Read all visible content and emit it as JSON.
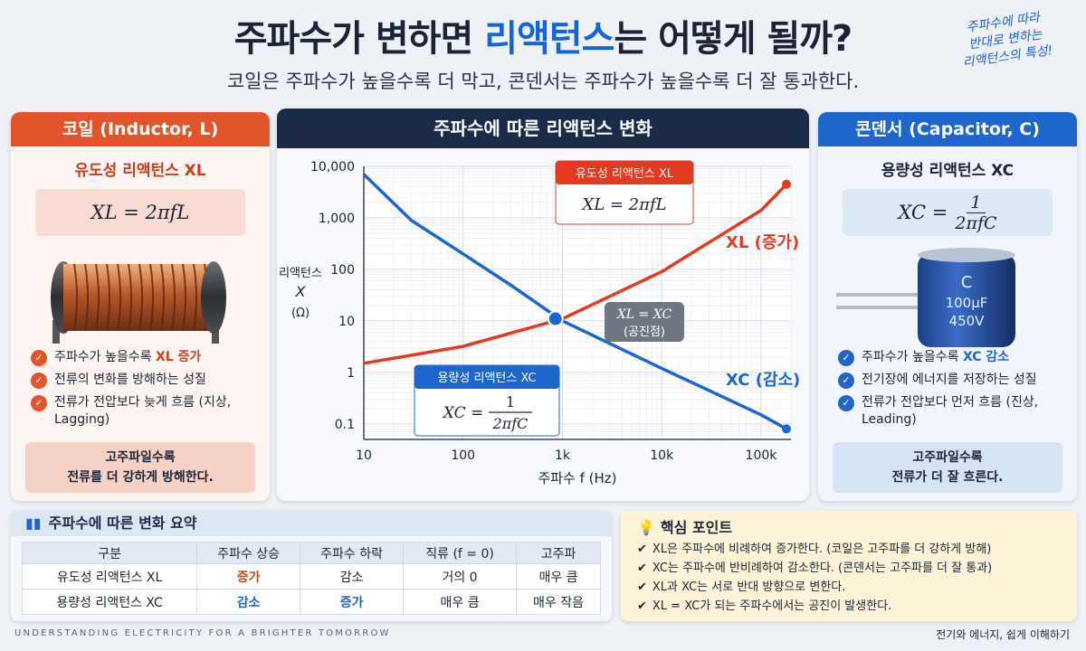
{
  "header": {
    "title_pre": "주파수가 변하면 ",
    "title_hl": "리액턴스",
    "title_post": "는 어떻게 될까?",
    "subtitle": "코일은 주파수가 높을수록 더 막고, 콘덴서는 주파수가 높을수록 더 잘 통과한다.",
    "note_lines": [
      "주파수에 따라",
      "반대로 변하는",
      "리액턴스의 특성!"
    ]
  },
  "inductor": {
    "head": "코일 (Inductor, L)",
    "sub": "유도성 리액턴스 XL",
    "formula": "XL = 2πfL",
    "bullets": [
      {
        "text": "주파수가 높을수록 ",
        "em": "XL 증가"
      },
      {
        "text": "전류의 변화를 방해하는 성질",
        "em": ""
      },
      {
        "text": "전류가 전압보다 늦게 흐름 (지상, Lagging)",
        "em": ""
      }
    ],
    "bottom_line1": "고주파일수록",
    "bottom_line2": "전류를 더 강하게 방해한다."
  },
  "capacitor": {
    "head": "콘덴서 (Capacitor, C)",
    "sub": "용량성 리액턴스 XC",
    "formula_lhs": "XC =",
    "formula_num": "1",
    "formula_den": "2πfC",
    "body_label": "C",
    "body_value": "100μF",
    "body_voltage": "450V",
    "bullets": [
      {
        "text": "주파수가 높을수록 ",
        "em": "XC 감소"
      },
      {
        "text": "전기장에 에너지를 저장하는 성질",
        "em": ""
      },
      {
        "text": "전류가 전압보다 먼저 흐름 (진상, Leading)",
        "em": ""
      }
    ],
    "bottom_line1": "고주파일수록",
    "bottom_line2": "전류가 더 잘 흐른다."
  },
  "chart_data": {
    "type": "line",
    "title": "주파수에 따른 리액턴스 변화",
    "xlabel": "주파수 f (Hz)",
    "ylabel": [
      "리액턴스",
      "X",
      "(Ω)"
    ],
    "x_scale": "log",
    "y_scale": "log",
    "xlim": [
      10,
      200000
    ],
    "ylim": [
      0.05,
      10000
    ],
    "x_ticks": [
      10,
      100,
      1000,
      10000,
      100000
    ],
    "x_tick_labels": [
      "10",
      "100",
      "1k",
      "10k",
      "100k"
    ],
    "y_ticks": [
      0.1,
      1,
      10,
      100,
      1000,
      10000
    ],
    "y_tick_labels": [
      "0.1",
      "1",
      "10",
      "100",
      "1,000",
      "10,000"
    ],
    "grid": true,
    "series": [
      {
        "name": "유도성 리액턴스 XL",
        "color": "#e33b22",
        "x": [
          10,
          100,
          1000,
          10000,
          100000,
          180000
        ],
        "y": [
          1.5,
          3.2,
          11,
          90,
          1400,
          4500
        ]
      },
      {
        "name": "용량성 리액턴스 XC",
        "color": "#1e66cc",
        "x": [
          10,
          30,
          100,
          300,
          1000,
          10000,
          100000,
          180000
        ],
        "y": [
          7000,
          900,
          200,
          50,
          10,
          1.2,
          0.15,
          0.08
        ]
      }
    ],
    "annotations": {
      "xl_box_title": "유도성 리액턴스 XL",
      "xl_box_formula": "XL = 2πfL",
      "xc_box_title": "용량성 리액턴스 XC",
      "xc_box_formula_lhs": "XC =",
      "xc_box_num": "1",
      "xc_box_den": "2πfC",
      "xl_trend": "XL (증가)",
      "xc_trend": "XC (감소)",
      "resonance_eq": "XL = XC",
      "resonance_label": "(공진점)",
      "resonance_x": 850,
      "resonance_y": 11
    }
  },
  "summary": {
    "head": "주파수에 따른 변화 요약",
    "columns": [
      "구분",
      "주파수 상승",
      "주파수 하락",
      "직류 (f = 0)",
      "고주파"
    ],
    "rows": [
      {
        "cells": [
          "유도성 리액턴스 XL",
          "증가",
          "감소",
          "거의 0",
          "매우 큼"
        ]
      },
      {
        "cells": [
          "용량성 리액턴스 XC",
          "감소",
          "증가",
          "매우 큼",
          "매우 작음"
        ]
      }
    ]
  },
  "key_points": {
    "head": "핵심 포인트",
    "items": [
      "XL은 주파수에 비례하여 증가한다. (코일은 고주파를 더 강하게 방해)",
      "XC는 주파수에 반비례하여 감소한다. (콘덴서는 고주파를 더 잘 통과)",
      "XL과 XC는 서로 반대 방향으로 변한다.",
      "XL = XC가 되는 주파수에서는 공진이 발생한다."
    ]
  },
  "footer": {
    "left": "UNDERSTANDING ELECTRICITY FOR A BRIGHTER TOMORROW",
    "right": "전기와 에너지, 쉽게 이해하기"
  }
}
